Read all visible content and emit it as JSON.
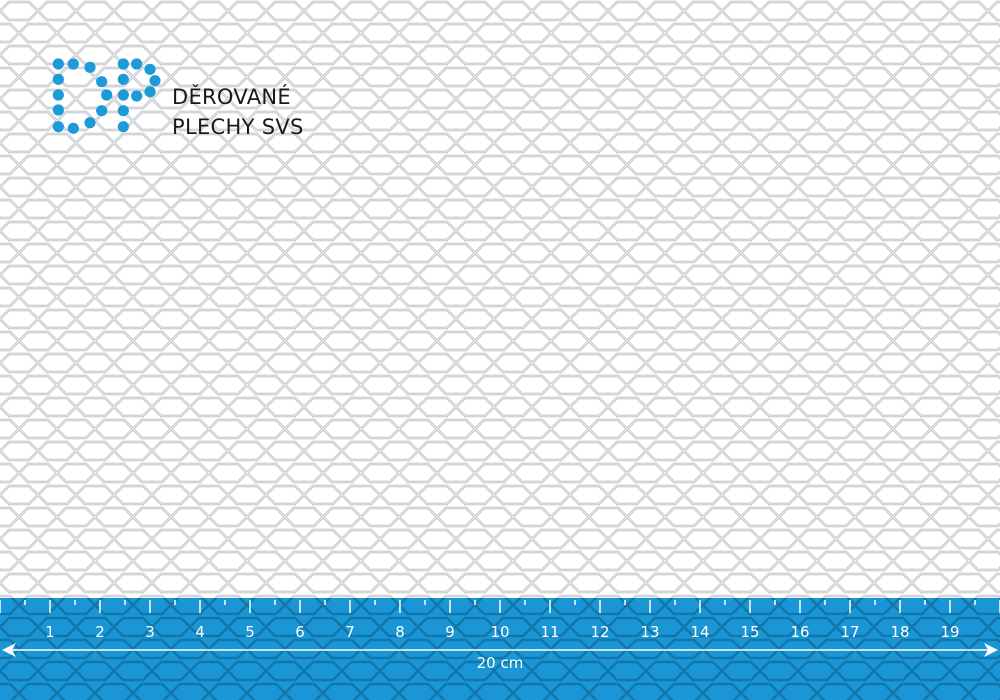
{
  "logo": {
    "line1": "DĚROVANÉ",
    "line2": "PLECHY SVS",
    "color": "#1e9ad8"
  },
  "ruler": {
    "color": "#1a96d6",
    "labels": [
      "1",
      "2",
      "3",
      "4",
      "5",
      "6",
      "7",
      "8",
      "9",
      "10",
      "11",
      "12",
      "13",
      "14",
      "15",
      "16",
      "17",
      "18",
      "19"
    ],
    "dimension_label": "20 cm"
  }
}
